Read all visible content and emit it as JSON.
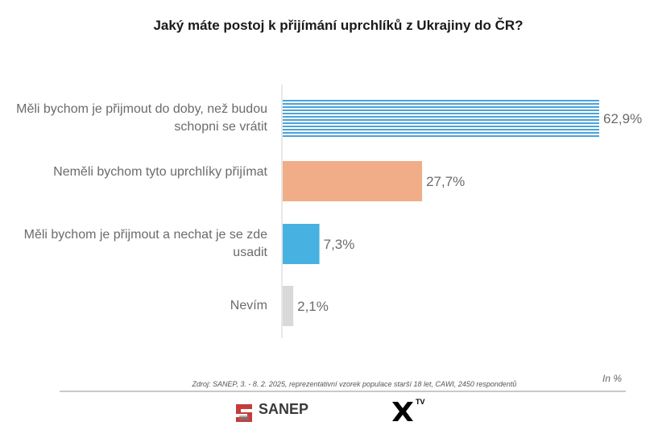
{
  "chart_data": {
    "type": "bar",
    "orientation": "horizontal",
    "title": "Jaký máte postoj k přijímání uprchlíků z Ukrajiny do ČR?",
    "categories": [
      "Měli bychom je přijmout do doby, než budou schopni se vrátit",
      "Neměli bychom tyto uprchlíky přijímat",
      "Měli bychom je přijmout a nechat je se zde usadit",
      "Nevím"
    ],
    "values": [
      62.9,
      27.7,
      7.3,
      2.1
    ],
    "value_labels": [
      "62,9%",
      "27,7%",
      "7,3%",
      "2,1%"
    ],
    "bar_colors": [
      "#4ba3d9",
      "#f1ad88",
      "#47b1e1",
      "#d9d9d9"
    ],
    "bar_styles": [
      "striped",
      "solid",
      "solid",
      "solid"
    ],
    "unit": "In %",
    "xlim": [
      0,
      62.9
    ],
    "grid": false
  },
  "source": "Zdroj: SANEP, 3. - 8. 2. 2025, reprezentativní vzorek populace starší 18 let, CAWI, 2450 respondentů",
  "logos": {
    "sanep": "SANEP",
    "xtv": "TV"
  }
}
